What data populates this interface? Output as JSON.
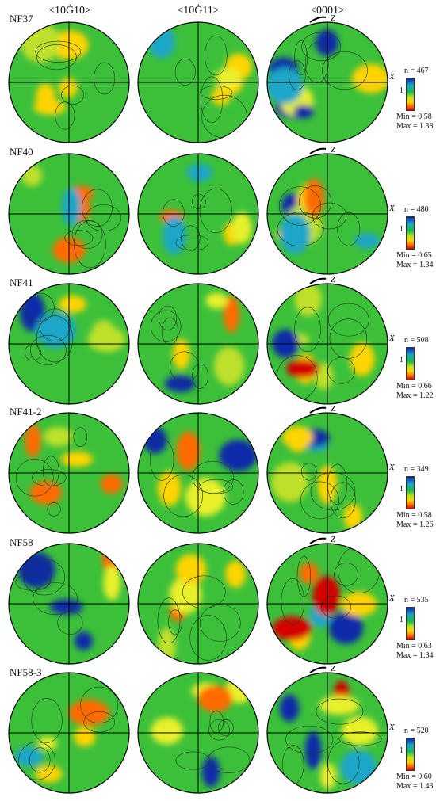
{
  "column_headers": [
    "<10Ġ10>",
    "<10Ġ11>",
    "<0001>"
  ],
  "axis_labels": {
    "x": "X",
    "z": "Z"
  },
  "legend_one": "1",
  "rows": [
    {
      "label": "NF37",
      "n": "n = 467",
      "min": "Min = 0.58",
      "max": "Max = 1.38"
    },
    {
      "label": "NF40",
      "n": "n = 480",
      "min": "Min = 0.65",
      "max": "Max = 1.34"
    },
    {
      "label": "NF41",
      "n": "n = 508",
      "min": "Min = 0.66",
      "max": "Max = 1.22"
    },
    {
      "label": "NF41-2",
      "n": "n = 349",
      "min": "Min = 0.58",
      "max": "Max = 1.26"
    },
    {
      "label": "NF58",
      "n": "n = 535",
      "min": "Min = 0.63",
      "max": "Max = 1.34"
    },
    {
      "label": "NF58-3",
      "n": "n = 520",
      "min": "Min = 0.60",
      "max": "Max = 1.43"
    }
  ],
  "colors": {
    "low": "#0a2aa8",
    "mid": "#18b94a",
    "high": "#d40000"
  }
}
